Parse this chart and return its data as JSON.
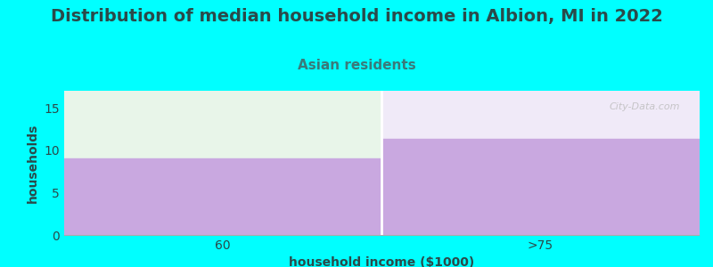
{
  "title": "Distribution of median household income in Albion, MI in 2022",
  "subtitle": "Asian residents",
  "xlabel": "household income ($1000)",
  "ylabel": "households",
  "categories": [
    "60",
    ">75"
  ],
  "values": [
    9.0,
    11.3
  ],
  "bar_color": "#c9a8e0",
  "area_fill_left": "#e8f5e9",
  "area_fill_right": "#f0eaf8",
  "background_color": "#00ffff",
  "plot_bg_color": "#ffffff",
  "ylim": [
    0,
    17
  ],
  "yticks": [
    0,
    5,
    10,
    15
  ],
  "title_fontsize": 14,
  "title_color": "#2a4a4a",
  "subtitle_fontsize": 11,
  "subtitle_color": "#3a7a7a",
  "axis_label_fontsize": 10,
  "axis_label_color": "#2a4a4a",
  "tick_fontsize": 10,
  "tick_color": "#2a4a4a",
  "watermark": "City-Data.com",
  "grid_color": "#dddddd"
}
